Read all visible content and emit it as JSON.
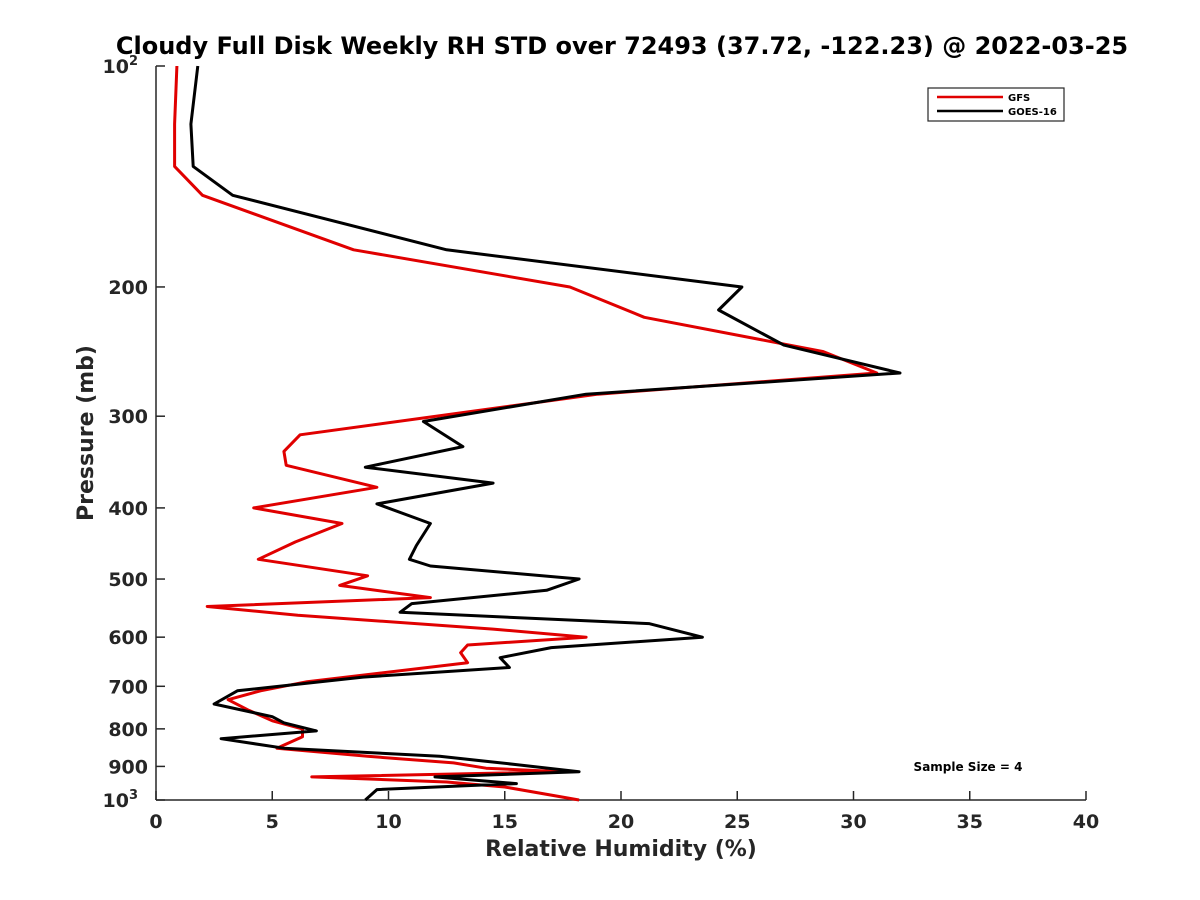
{
  "chart_data": {
    "type": "line",
    "title": "Cloudy Full Disk Weekly RH STD over 72493 (37.72, -122.23) @ 2022-03-25",
    "xlabel": "Relative Humidity (%)",
    "ylabel": "Pressure (mb)",
    "xlim": [
      0,
      40
    ],
    "ylim": [
      100,
      1000
    ],
    "y_scale": "log",
    "y_reversed": true,
    "grid": false,
    "legend_position": "top-right",
    "x_ticks": [
      0,
      5,
      10,
      15,
      20,
      25,
      30,
      35,
      40
    ],
    "y_ticks": [
      {
        "value": 100,
        "label": "10",
        "sup": "2"
      },
      {
        "value": 200,
        "label": "200",
        "sup": ""
      },
      {
        "value": 300,
        "label": "300",
        "sup": ""
      },
      {
        "value": 400,
        "label": "400",
        "sup": ""
      },
      {
        "value": 500,
        "label": "500",
        "sup": ""
      },
      {
        "value": 600,
        "label": "600",
        "sup": ""
      },
      {
        "value": 700,
        "label": "700",
        "sup": ""
      },
      {
        "value": 800,
        "label": "800",
        "sup": ""
      },
      {
        "value": 900,
        "label": "900",
        "sup": ""
      },
      {
        "value": 1000,
        "label": "10",
        "sup": "3"
      }
    ],
    "annotation": "Sample Size = 4",
    "series": [
      {
        "name": "GFS",
        "color": "#e00000",
        "x": [
          0.9,
          0.8,
          0.8,
          2.0,
          8.5,
          17.8,
          21.0,
          28.7,
          31.0,
          19.0,
          6.2,
          5.5,
          5.6,
          9.5,
          4.2,
          8.0,
          6.0,
          4.4,
          9.1,
          7.9,
          11.8,
          2.2,
          6.1,
          14.5,
          18.5,
          13.4,
          13.1,
          13.4,
          6.5,
          4.5,
          3.1,
          4.0,
          5.0,
          6.3,
          6.3,
          5.2,
          9.1,
          12.8,
          14.2,
          17.5,
          6.7,
          12.5,
          15.0,
          18.2
        ],
        "y": [
          100,
          120,
          137,
          150,
          178,
          200,
          220,
          245,
          262,
          280,
          318,
          335,
          350,
          375,
          400,
          420,
          445,
          470,
          495,
          510,
          530,
          545,
          560,
          585,
          600,
          615,
          630,
          650,
          690,
          710,
          730,
          755,
          780,
          800,
          820,
          850,
          872,
          890,
          905,
          915,
          930,
          945,
          960,
          1000
        ]
      },
      {
        "name": "GOES-16",
        "color": "#000000",
        "x": [
          1.8,
          1.5,
          1.6,
          3.3,
          12.5,
          25.2,
          24.2,
          27.0,
          32.0,
          18.5,
          11.5,
          13.2,
          9.0,
          14.5,
          9.5,
          11.8,
          11.2,
          10.9,
          11.8,
          18.2,
          16.8,
          11.0,
          10.5,
          21.2,
          23.5,
          17.0,
          14.8,
          15.2,
          8.9,
          3.5,
          2.5,
          5.0,
          5.5,
          6.9,
          2.8,
          5.5,
          12.2,
          15.5,
          18.2,
          12.0,
          15.5,
          9.5,
          9.0
        ],
        "y": [
          100,
          120,
          137,
          150,
          178,
          200,
          215,
          240,
          262,
          280,
          305,
          330,
          352,
          370,
          395,
          420,
          450,
          470,
          480,
          500,
          518,
          540,
          555,
          575,
          600,
          620,
          640,
          660,
          680,
          710,
          740,
          770,
          785,
          805,
          825,
          850,
          872,
          895,
          915,
          930,
          950,
          968,
          1000
        ]
      }
    ]
  }
}
